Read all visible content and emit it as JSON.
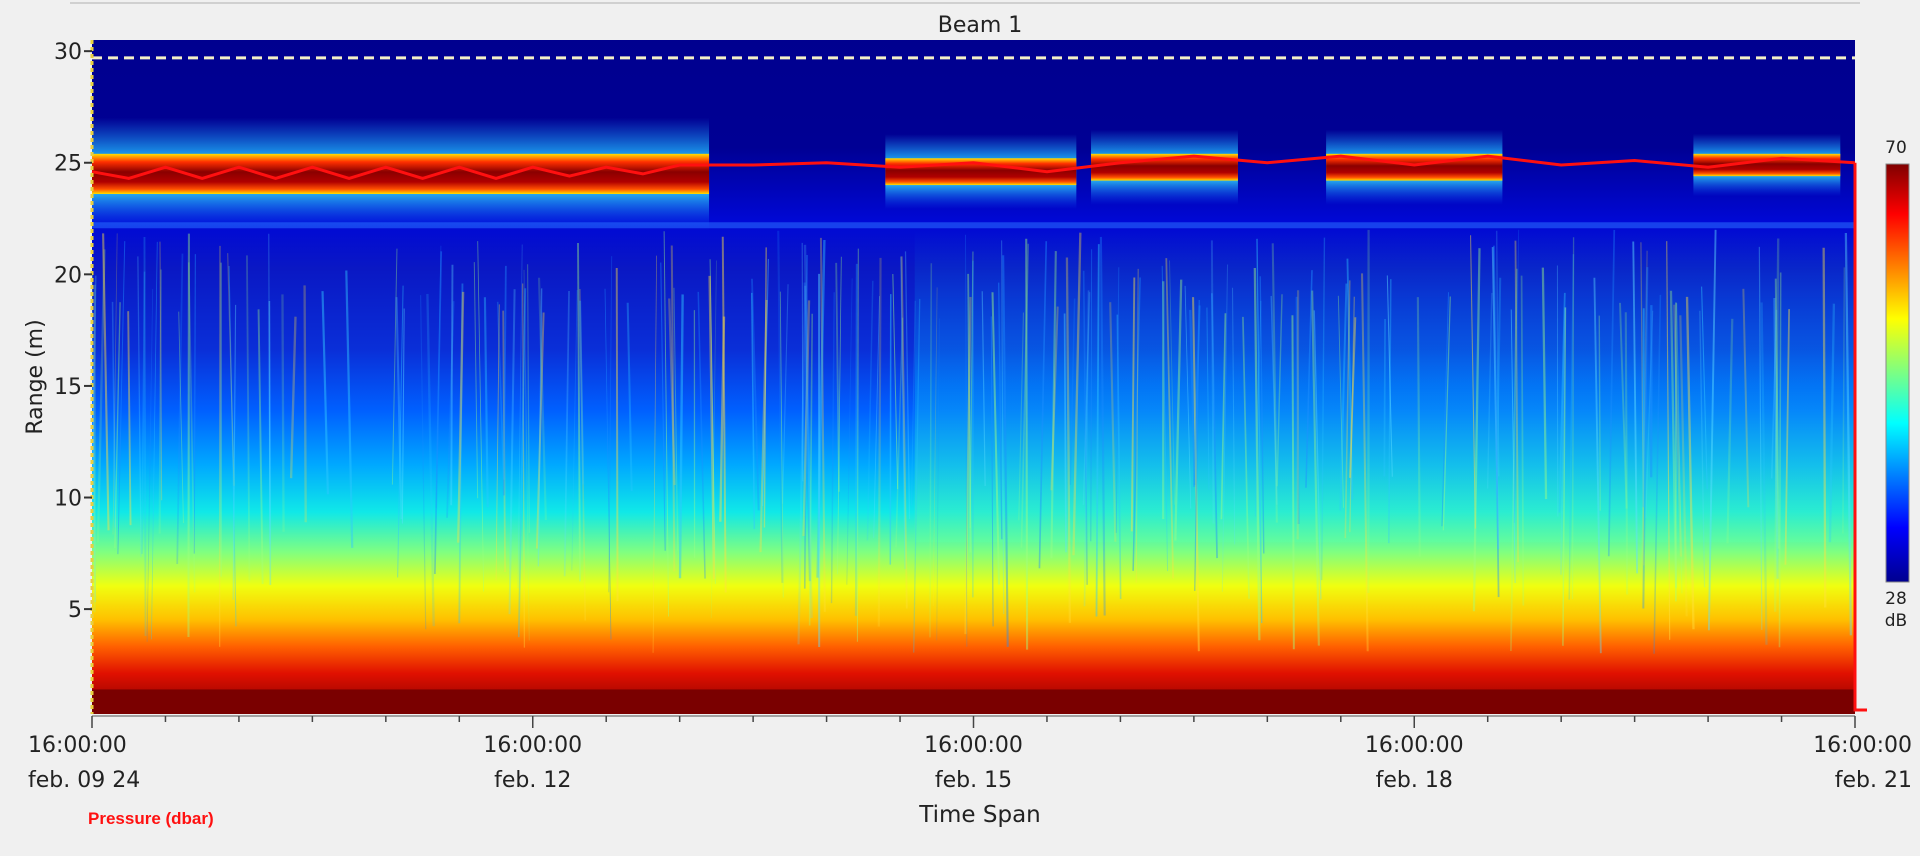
{
  "chart_data": {
    "type": "heatmap",
    "title": "Beam 1",
    "xlabel": "Time Span",
    "ylabel": "Range (m)",
    "ylim": [
      0.3,
      30.5
    ],
    "y_ticks": [
      5,
      10,
      15,
      20,
      25,
      30
    ],
    "x_ticks": [
      {
        "time": "16:00:00",
        "date": "feb. 09 24"
      },
      {
        "time": "16:00:00",
        "date": "feb. 12"
      },
      {
        "time": "16:00:00",
        "date": "feb. 15"
      },
      {
        "time": "16:00:00",
        "date": "feb. 18"
      },
      {
        "time": "16:00:00",
        "date": "feb. 21"
      }
    ],
    "x_range": [
      "2024-02-09 16:00:00",
      "2024-02-21 16:00:00"
    ],
    "colorbar": {
      "max": "70",
      "min": "28",
      "unit": "dB",
      "colormap": "jet"
    },
    "reference_line_range_m": 29.7,
    "series": [
      {
        "name": "Pressure (dbar)",
        "color": "#ff1010",
        "x_days": [
          0,
          0.25,
          0.5,
          0.75,
          1.0,
          1.25,
          1.5,
          1.75,
          2.0,
          2.25,
          2.5,
          2.75,
          3.0,
          3.25,
          3.5,
          3.75,
          4.0,
          4.5,
          5.0,
          5.5,
          6.0,
          6.5,
          7.0,
          7.5,
          8.0,
          8.5,
          9.0,
          9.5,
          10.0,
          10.5,
          11.0,
          11.5,
          12.0
        ],
        "values": [
          24.6,
          24.3,
          24.8,
          24.3,
          24.8,
          24.3,
          24.8,
          24.3,
          24.8,
          24.3,
          24.8,
          24.3,
          24.8,
          24.4,
          24.8,
          24.5,
          24.9,
          24.9,
          25.0,
          24.8,
          25.0,
          24.6,
          25.0,
          25.3,
          25.0,
          25.3,
          24.9,
          25.3,
          24.9,
          25.1,
          24.8,
          25.2,
          25.0
        ]
      }
    ],
    "echo_features": [
      {
        "feature": "strong echo band",
        "x_days": [
          0,
          4.2
        ],
        "range_m": [
          23.6,
          25.4
        ]
      },
      {
        "feature": "strong echo band",
        "x_days": [
          5.4,
          6.7
        ],
        "range_m": [
          24.0,
          25.2
        ]
      },
      {
        "feature": "strong echo band",
        "x_days": [
          6.8,
          7.8
        ],
        "range_m": [
          24.2,
          25.4
        ]
      },
      {
        "feature": "strong echo band",
        "x_days": [
          8.4,
          9.6
        ],
        "range_m": [
          24.2,
          25.4
        ]
      },
      {
        "feature": "strong echo band",
        "x_days": [
          10.9,
          11.9
        ],
        "range_m": [
          24.4,
          25.4
        ]
      },
      {
        "feature": "near-transducer high backscatter",
        "x_days": [
          0,
          12
        ],
        "range_m": [
          0.3,
          3.5
        ]
      }
    ]
  }
}
